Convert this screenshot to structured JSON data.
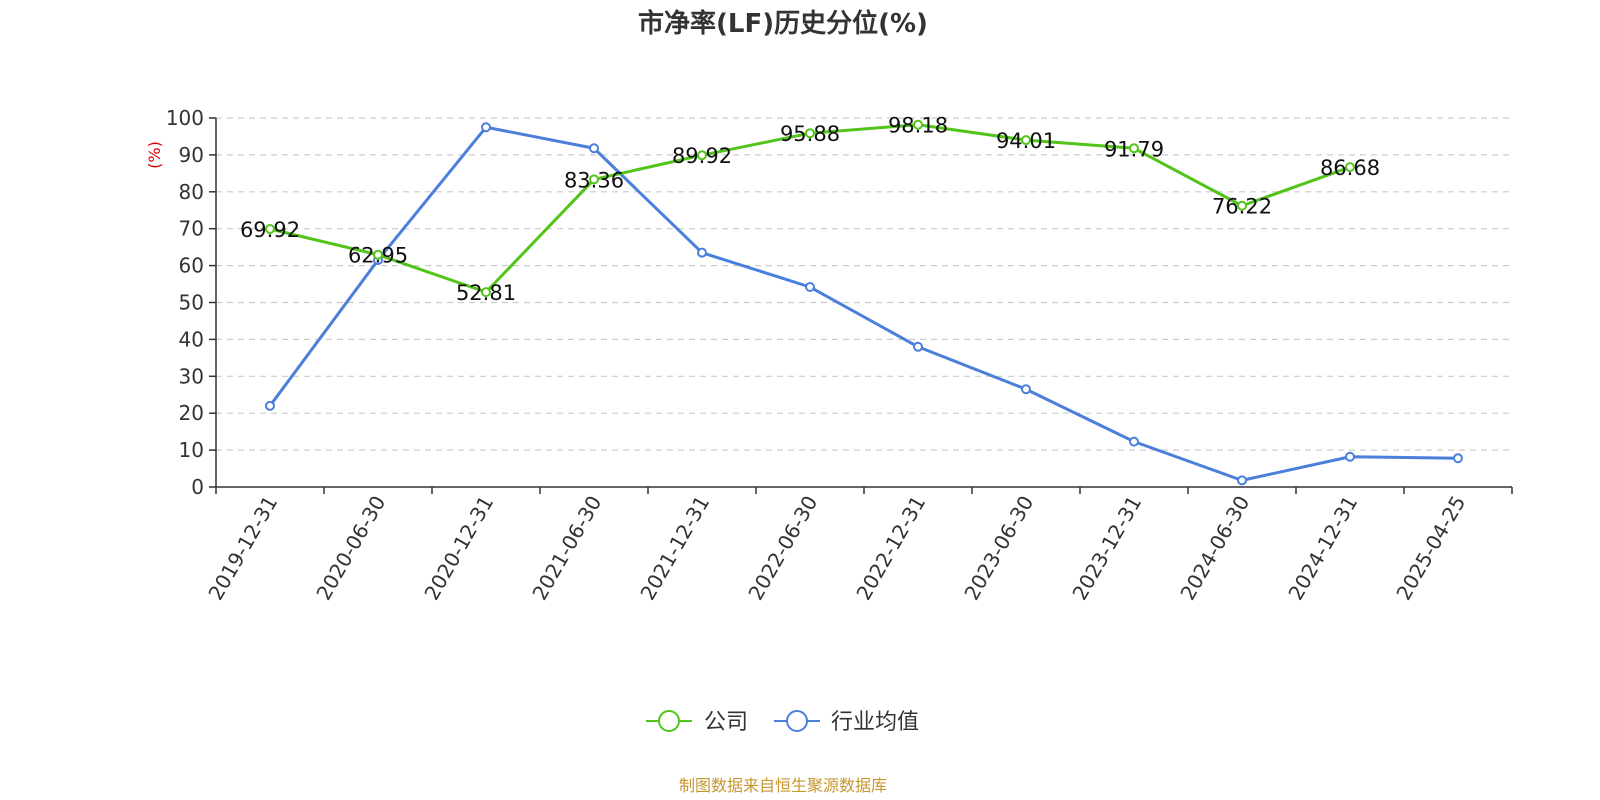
{
  "chart_data": {
    "type": "line",
    "title": "市净率(LF)历史分位(%)",
    "ylabel": "(%)",
    "ylim": [
      0,
      100
    ],
    "yticks": [
      0,
      10,
      20,
      30,
      40,
      50,
      60,
      70,
      80,
      90,
      100
    ],
    "grid": true,
    "legend_position": "bottom-center",
    "categories": [
      "2019-12-31",
      "2020-06-30",
      "2020-12-31",
      "2021-06-30",
      "2021-12-31",
      "2022-06-30",
      "2022-12-31",
      "2023-06-30",
      "2023-12-31",
      "2024-06-30",
      "2024-12-31",
      "2025-04-25"
    ],
    "series": [
      {
        "name": "公司",
        "color": "#52c41a",
        "values": [
          69.92,
          62.95,
          52.81,
          83.36,
          89.92,
          95.88,
          98.18,
          94.01,
          91.79,
          76.22,
          86.68,
          null
        ],
        "labels": [
          "69.92",
          "62.95",
          "52.81",
          "83.36",
          "89.92",
          "95.88",
          "98.18",
          "94.01",
          "91.79",
          "76.22",
          "86.68",
          null
        ]
      },
      {
        "name": "行业均值",
        "color": "#4a7fdb",
        "values": [
          22.0,
          61.5,
          97.5,
          91.8,
          63.5,
          54.2,
          38.0,
          26.5,
          12.3,
          1.8,
          8.2,
          7.8
        ]
      }
    ],
    "source": "制图数据来自恒生聚源数据库"
  }
}
